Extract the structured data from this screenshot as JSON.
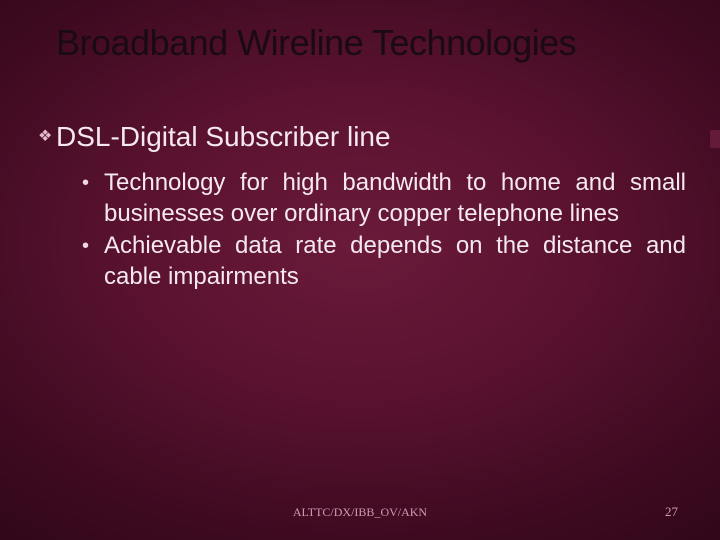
{
  "slide": {
    "background": {
      "type": "radial-gradient",
      "center_color": "#6a1a3a",
      "mid_color": "#5a1230",
      "outer_color": "#3d0a20",
      "edge_color": "#2a0515"
    },
    "title": {
      "text": "Broadband Wireline Technologies",
      "color": "#1a0a12",
      "fontsize_pt": 36,
      "fontweight": "normal"
    },
    "body": {
      "text_color": "#f5e8ee",
      "lvl1_fontsize_pt": 28,
      "lvl2_fontsize_pt": 24,
      "lvl1_bullet_glyph": "❖",
      "lvl2_bullet_glyph": "•",
      "items": [
        {
          "text": "DSL-Digital Subscriber line",
          "children": [
            {
              "text": "Technology for high bandwidth to home and small businesses over ordinary copper telephone lines"
            },
            {
              "text": "Achievable data rate depends on the distance and cable impairments"
            }
          ]
        }
      ]
    },
    "footer": {
      "reference": "ALTTC/DX/IBB_OV/AKN",
      "page_number": "27",
      "color": "#d29ab2",
      "fontsize_pt": 12
    }
  }
}
